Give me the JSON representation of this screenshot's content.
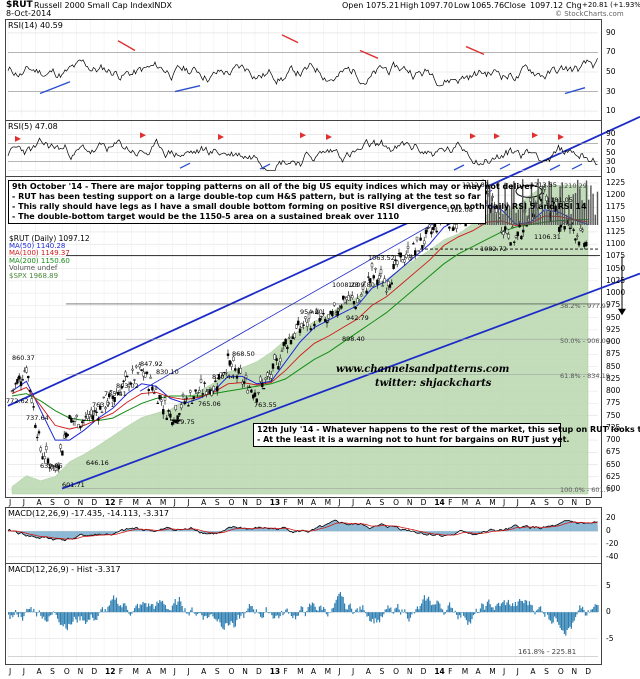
{
  "header": {
    "symbol": "$RUT",
    "name": "Russell 2000 Small Cap Index",
    "exchange": "INDX",
    "date": "8-Oct-2014",
    "open_label": "Open",
    "open": "1075.21",
    "high_label": "High",
    "high": "1097.70",
    "low_label": "Low",
    "low": "1065.76",
    "close_label": "Close",
    "close": "1097.12",
    "chg_label": "Chg",
    "chg": "+20.81 (+1.93%)",
    "watermark": "© StockCharts.com"
  },
  "panels": {
    "rsi14": {
      "label": "RSI(14) 40.59",
      "ticks": [
        "90",
        "70",
        "50",
        "30",
        "10"
      ]
    },
    "rsi5": {
      "label": "RSI(5) 47.08",
      "ticks": [
        "90",
        "70",
        "50",
        "30",
        "10"
      ]
    },
    "price": {
      "ticks": [
        "1225",
        "1200",
        "1175",
        "1150",
        "1125",
        "1100",
        "1075",
        "1050",
        "1025",
        "1000",
        "975",
        "950",
        "925",
        "900",
        "875",
        "850",
        "825",
        "800",
        "775",
        "750",
        "725",
        "700",
        "675",
        "650",
        "625",
        "600"
      ],
      "legend": [
        "$RUT (Daily) 1097.12",
        "MA(50) 1140.28",
        "MA(100) 1149.37",
        "MA(200) 1150.60",
        "Volume undef",
        "$SPX 1968.89"
      ]
    },
    "macd": {
      "label": "MACD(12,26,9) -17.435, -14.113, -3.317",
      "ticks": [
        "20",
        "0",
        "-20",
        "-40"
      ]
    },
    "hist": {
      "label": "MACD(12,26,9) - Hist -3.317",
      "ticks": [
        "5",
        "0",
        "-5"
      ],
      "fib_note": "161.8% - 225.81"
    }
  },
  "notes": {
    "top": [
      "9th October '14 - There are major topping patterns on all of the big US equity indices which may or may not deliver",
      "- RUT has been testing support on a large double-top cum H&S pattern, but is rallying at the test so far",
      "- This rally should have legs as I have a small double bottom forming on positive RSI divergence on both daily RSI 5 and RSI 14",
      "- The double-bottom target would be the 1150-5 area on a sustained break over 1110"
    ],
    "bottom": [
      "12th July '14 - Whatever happens to the rest of the market, this setup on RUT looks toxic",
      "- At the least it is a warning not to hunt for bargains on RUT just yet."
    ]
  },
  "watermark": [
    "www.channelsandpatterns.com",
    "twitter: shjackcharts"
  ],
  "price_annotations": [
    "860.37",
    "772.62",
    "737.64",
    "639.85",
    "601.71",
    "646.16",
    "763.71",
    "785.41",
    "803.02",
    "847.92",
    "830.10",
    "729.75",
    "765.06",
    "820.44",
    "868.50",
    "763.55",
    "954.20",
    "1008.23",
    "1063.52",
    "1009.80",
    "942.79",
    "898.40",
    "1162.08",
    "1212.82",
    "1213.55",
    "1181.05",
    "1106.31",
    "1082.72",
    "1210.29",
    "977.91",
    "906.00",
    "834.19",
    "601.71"
  ],
  "fib_labels": [
    "38.2% - 977.91",
    "50.0% - 906.00",
    "61.8% - 834.19",
    "100.0% - 601.71"
  ],
  "x_axis": [
    "J",
    "J",
    "A",
    "S",
    "O",
    "N",
    "D",
    "12",
    "F",
    "M",
    "A",
    "M",
    "J",
    "J",
    "A",
    "S",
    "O",
    "N",
    "D",
    "13",
    "F",
    "M",
    "A",
    "M",
    "J",
    "J",
    "A",
    "S",
    "O",
    "N",
    "D",
    "14",
    "F",
    "M",
    "A",
    "M",
    "J",
    "J",
    "A",
    "S",
    "O",
    "N",
    "D"
  ],
  "colors": {
    "price": "#000000",
    "ma50": "#1e2ad8",
    "ma100": "#d01818",
    "ma200": "#148c14",
    "spx_area": "#b9d8b0",
    "channel": "#1c2bc8",
    "rsi": "#000000",
    "macd_fill": "#2f7fb2",
    "hist": "#2f7fb2",
    "arrow_up": "#2a4fd0",
    "arrow_down": "#e03030"
  },
  "chart_data": [
    {
      "type": "line",
      "title": "$RUT (Daily) 1097.12",
      "x": [
        "2011-06",
        "2011-07",
        "2011-08",
        "2011-09",
        "2011-10",
        "2011-11",
        "2011-12",
        "2012-01",
        "2012-02",
        "2012-03",
        "2012-04",
        "2012-05",
        "2012-06",
        "2012-07",
        "2012-08",
        "2012-09",
        "2012-10",
        "2012-11",
        "2012-12",
        "2013-01",
        "2013-02",
        "2013-03",
        "2013-04",
        "2013-05",
        "2013-06",
        "2013-07",
        "2013-08",
        "2013-09",
        "2013-10",
        "2013-11",
        "2013-12",
        "2014-01",
        "2014-02",
        "2014-03",
        "2014-04",
        "2014-05",
        "2014-06",
        "2014-07",
        "2014-08",
        "2014-09",
        "2014-10"
      ],
      "series": [
        {
          "name": "$RUT (Daily) 1097.12",
          "values": [
            800,
            850,
            680,
            640,
            740,
            740,
            760,
            790,
            820,
            840,
            800,
            750,
            780,
            800,
            810,
            860,
            820,
            800,
            830,
            900,
            930,
            950,
            940,
            990,
            980,
            1040,
            1020,
            1070,
            1090,
            1120,
            1160,
            1140,
            1180,
            1200,
            1140,
            1110,
            1170,
            1200,
            1150,
            1130,
            1097
          ]
        },
        {
          "name": "MA(50) 1140.28",
          "values": [
            800,
            820,
            760,
            700,
            700,
            720,
            745,
            765,
            795,
            815,
            810,
            785,
            775,
            785,
            800,
            830,
            830,
            815,
            820,
            860,
            900,
            930,
            945,
            960,
            975,
            1010,
            1025,
            1050,
            1075,
            1100,
            1135,
            1150,
            1160,
            1180,
            1170,
            1140,
            1145,
            1170,
            1165,
            1150,
            1140
          ]
        },
        {
          "name": "MA(200) 1150.60",
          "values": [
            790,
            795,
            780,
            760,
            745,
            740,
            740,
            745,
            760,
            775,
            785,
            790,
            790,
            790,
            795,
            800,
            805,
            810,
            815,
            825,
            845,
            865,
            880,
            900,
            920,
            940,
            960,
            985,
            1010,
            1035,
            1060,
            1080,
            1095,
            1110,
            1125,
            1135,
            1140,
            1145,
            1148,
            1150,
            1150
          ]
        }
      ],
      "ylim": [
        590,
        1235
      ],
      "channels": [
        "rising channel from 601.71 low",
        "double-top cum H&S at 1212.82 / 1213.55"
      ],
      "grid": true,
      "legend": "top-left"
    }
  ]
}
